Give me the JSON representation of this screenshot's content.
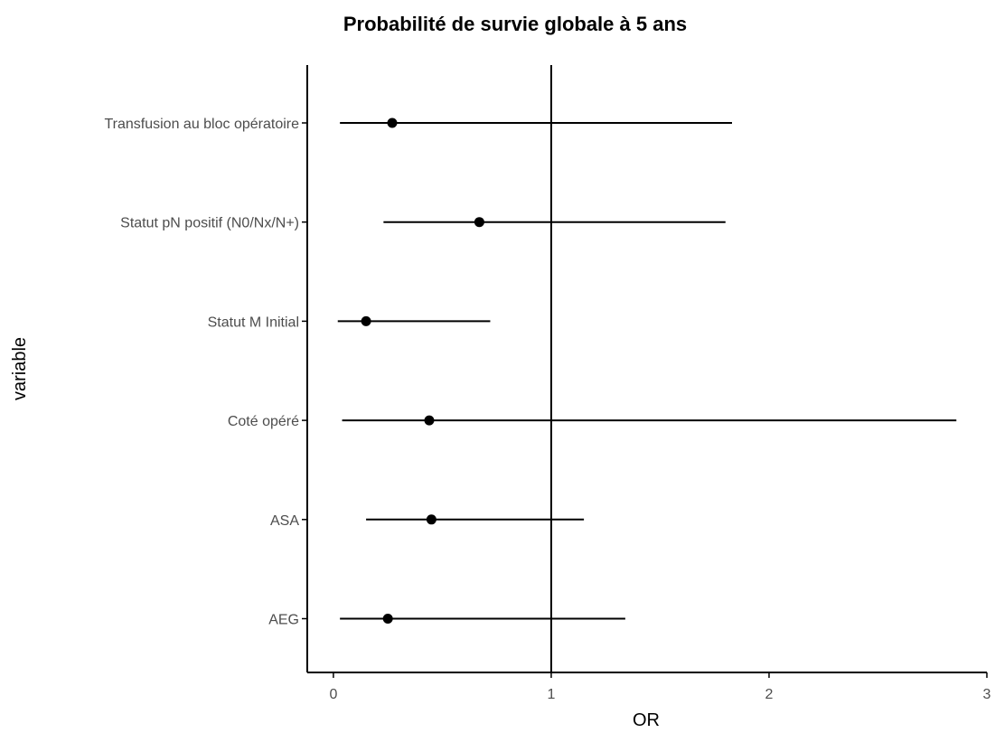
{
  "chart_data": {
    "type": "forest",
    "title": "Probabilité de survie globale à 5 ans",
    "xlabel": "OR",
    "ylabel": "variable",
    "xlim": [
      -0.12,
      3.0
    ],
    "xticks": [
      0,
      1,
      2,
      3
    ],
    "reference_line": 1,
    "grid": false,
    "variables": [
      {
        "name": "Transfusion au bloc opératoire",
        "or": 0.27,
        "lower": 0.03,
        "upper": 1.83
      },
      {
        "name": "Statut pN positif (N0/Nx/N+)",
        "or": 0.67,
        "lower": 0.23,
        "upper": 1.8
      },
      {
        "name": "Statut M Initial",
        "or": 0.15,
        "lower": 0.02,
        "upper": 0.72
      },
      {
        "name": "Coté opéré",
        "or": 0.44,
        "lower": 0.04,
        "upper": 2.86
      },
      {
        "name": "ASA",
        "or": 0.45,
        "lower": 0.15,
        "upper": 1.15
      },
      {
        "name": "AEG",
        "or": 0.25,
        "lower": 0.03,
        "upper": 1.34
      }
    ]
  }
}
